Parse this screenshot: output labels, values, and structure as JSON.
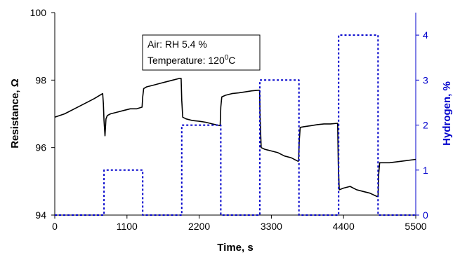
{
  "chart_data": {
    "type": "line",
    "title": "",
    "annotation": {
      "line1": "Air: RH 5.4 %",
      "line2_prefix": "Temperature: 120",
      "line2_sup": "0",
      "line2_suffix": "C"
    },
    "xlabel": "Time, s",
    "ylabel_left": "Resistance, Ω",
    "ylabel_right": "Hydrogen, %",
    "xlim": [
      0,
      5500
    ],
    "ylim_left": [
      94,
      100
    ],
    "ylim_right": [
      0,
      4.5
    ],
    "x_ticks": [
      "0",
      "1100",
      "2200",
      "3300",
      "4400",
      "5500"
    ],
    "y_ticks_left": [
      "94",
      "96",
      "98",
      "100"
    ],
    "y_ticks_right": [
      "0",
      "1",
      "2",
      "3",
      "4"
    ],
    "grid": false,
    "colors": {
      "resistance": "#000000",
      "hydrogen": "#0000CC",
      "axis_right": "#0000CC"
    },
    "series": [
      {
        "key": "resistance",
        "axis": "left",
        "style": "solid",
        "x": [
          0,
          150,
          300,
          450,
          600,
          730,
          740,
          750,
          765,
          780,
          800,
          850,
          950,
          1050,
          1150,
          1250,
          1330,
          1340,
          1355,
          1400,
          1500,
          1600,
          1700,
          1800,
          1900,
          1925,
          1935,
          1950,
          2000,
          2100,
          2200,
          2300,
          2400,
          2520,
          2530,
          2545,
          2600,
          2700,
          2800,
          2900,
          3000,
          3100,
          3120,
          3130,
          3145,
          3200,
          3300,
          3400,
          3500,
          3600,
          3700,
          3715,
          3725,
          3740,
          3800,
          3900,
          4000,
          4100,
          4200,
          4310,
          4320,
          4335,
          4400,
          4500,
          4600,
          4700,
          4800,
          4910,
          4925,
          4935,
          4950,
          5100,
          5300,
          5500
        ],
        "y": [
          96.9,
          97.0,
          97.15,
          97.3,
          97.45,
          97.6,
          97.3,
          96.8,
          96.35,
          96.85,
          96.95,
          97.0,
          97.05,
          97.1,
          97.15,
          97.15,
          97.2,
          97.5,
          97.75,
          97.8,
          97.85,
          97.9,
          97.95,
          98.0,
          98.05,
          98.05,
          97.4,
          96.9,
          96.85,
          96.8,
          96.78,
          96.75,
          96.7,
          96.65,
          97.2,
          97.5,
          97.55,
          97.6,
          97.62,
          97.65,
          97.68,
          97.7,
          97.7,
          96.8,
          96.0,
          95.95,
          95.9,
          95.85,
          95.75,
          95.7,
          95.6,
          95.6,
          96.2,
          96.6,
          96.62,
          96.65,
          96.68,
          96.7,
          96.7,
          96.72,
          95.5,
          94.75,
          94.8,
          94.85,
          94.75,
          94.7,
          94.65,
          94.55,
          94.55,
          95.2,
          95.55,
          95.55,
          95.6,
          95.65
        ]
      },
      {
        "key": "hydrogen",
        "axis": "right",
        "style": "dotted",
        "x": [
          0,
          750,
          750,
          1340,
          1340,
          1935,
          1935,
          2530,
          2530,
          3125,
          3125,
          3720,
          3720,
          4325,
          4325,
          4925,
          4925,
          5500
        ],
        "y": [
          0,
          0,
          1,
          1,
          0,
          0,
          2,
          2,
          0,
          0,
          3,
          3,
          0,
          0,
          4,
          4,
          0,
          0
        ]
      }
    ]
  }
}
